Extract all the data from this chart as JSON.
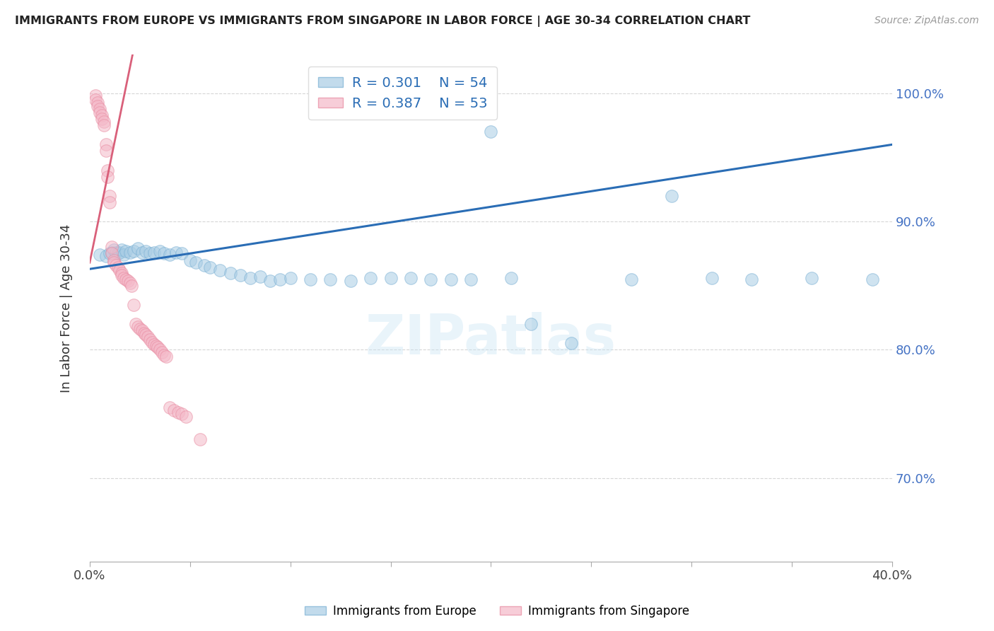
{
  "title": "IMMIGRANTS FROM EUROPE VS IMMIGRANTS FROM SINGAPORE IN LABOR FORCE | AGE 30-34 CORRELATION CHART",
  "source": "Source: ZipAtlas.com",
  "ylabel": "In Labor Force | Age 30-34",
  "xlim": [
    0.0,
    0.4
  ],
  "ylim": [
    0.635,
    1.03
  ],
  "yticks_right": [
    0.7,
    0.8,
    0.9,
    1.0
  ],
  "ytick_labels_right": [
    "70.0%",
    "80.0%",
    "90.0%",
    "100.0%"
  ],
  "legend_r_blue": "R = 0.301",
  "legend_n_blue": "N = 54",
  "legend_r_pink": "R = 0.387",
  "legend_n_pink": "N = 53",
  "blue_color": "#a8cce4",
  "pink_color": "#f4b8c8",
  "blue_line_color": "#2a6db5",
  "pink_line_color": "#d9607a",
  "watermark": "ZIPatlas",
  "blue_scatter_x": [
    0.005,
    0.008,
    0.01,
    0.011,
    0.012,
    0.013,
    0.014,
    0.015,
    0.016,
    0.017,
    0.018,
    0.02,
    0.022,
    0.024,
    0.026,
    0.028,
    0.03,
    0.032,
    0.035,
    0.037,
    0.04,
    0.043,
    0.046,
    0.05,
    0.053,
    0.057,
    0.06,
    0.065,
    0.07,
    0.075,
    0.08,
    0.085,
    0.09,
    0.095,
    0.1,
    0.11,
    0.12,
    0.13,
    0.14,
    0.15,
    0.16,
    0.17,
    0.18,
    0.19,
    0.2,
    0.21,
    0.22,
    0.24,
    0.27,
    0.29,
    0.31,
    0.33,
    0.36,
    0.39
  ],
  "blue_scatter_y": [
    0.874,
    0.873,
    0.875,
    0.876,
    0.878,
    0.876,
    0.875,
    0.876,
    0.878,
    0.874,
    0.877,
    0.876,
    0.877,
    0.879,
    0.876,
    0.877,
    0.875,
    0.876,
    0.877,
    0.875,
    0.874,
    0.876,
    0.875,
    0.87,
    0.868,
    0.866,
    0.864,
    0.862,
    0.86,
    0.858,
    0.856,
    0.857,
    0.854,
    0.855,
    0.856,
    0.855,
    0.855,
    0.854,
    0.856,
    0.856,
    0.856,
    0.855,
    0.855,
    0.855,
    0.97,
    0.856,
    0.82,
    0.805,
    0.855,
    0.92,
    0.856,
    0.855,
    0.856,
    0.855
  ],
  "pink_scatter_x": [
    0.003,
    0.003,
    0.004,
    0.004,
    0.005,
    0.005,
    0.006,
    0.006,
    0.007,
    0.007,
    0.008,
    0.008,
    0.009,
    0.009,
    0.01,
    0.01,
    0.011,
    0.011,
    0.012,
    0.012,
    0.013,
    0.014,
    0.015,
    0.016,
    0.016,
    0.017,
    0.018,
    0.019,
    0.02,
    0.021,
    0.022,
    0.023,
    0.024,
    0.025,
    0.026,
    0.027,
    0.028,
    0.029,
    0.03,
    0.031,
    0.032,
    0.033,
    0.034,
    0.035,
    0.036,
    0.037,
    0.038,
    0.04,
    0.042,
    0.044,
    0.046,
    0.048,
    0.055
  ],
  "pink_scatter_y": [
    0.998,
    0.995,
    0.993,
    0.99,
    0.988,
    0.985,
    0.983,
    0.98,
    0.978,
    0.975,
    0.96,
    0.955,
    0.94,
    0.935,
    0.92,
    0.915,
    0.88,
    0.875,
    0.87,
    0.868,
    0.866,
    0.864,
    0.862,
    0.86,
    0.858,
    0.856,
    0.855,
    0.854,
    0.852,
    0.85,
    0.835,
    0.82,
    0.818,
    0.816,
    0.815,
    0.813,
    0.812,
    0.81,
    0.808,
    0.806,
    0.804,
    0.803,
    0.802,
    0.8,
    0.798,
    0.796,
    0.795,
    0.755,
    0.753,
    0.751,
    0.75,
    0.748,
    0.73
  ],
  "blue_trend_x": [
    0.0,
    0.4
  ],
  "blue_trend_y": [
    0.863,
    0.96
  ],
  "pink_trend_x": [
    0.0,
    0.022
  ],
  "pink_trend_y": [
    0.868,
    1.035
  ]
}
